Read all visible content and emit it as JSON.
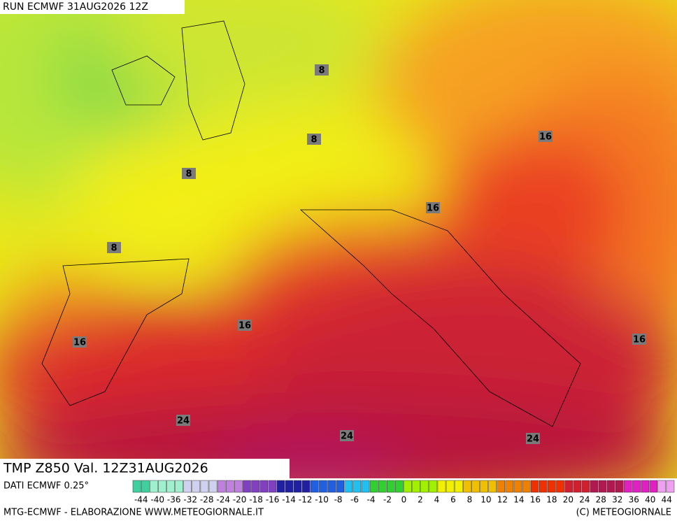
{
  "header": {
    "run": "RUN ECMWF 31AUG2026 12Z"
  },
  "map": {
    "title": "TMP Z850 Val. 12Z31AUG2026",
    "contour_labels": [
      8,
      8,
      8,
      8,
      16,
      16,
      16,
      16,
      16,
      24,
      24,
      24
    ]
  },
  "legend": {
    "source": "DATI ECMWF 0.25°",
    "ticks": [
      -44,
      -40,
      -36,
      -32,
      -28,
      -24,
      -20,
      -18,
      -16,
      -14,
      -12,
      -10,
      -8,
      -6,
      -4,
      -2,
      0,
      2,
      4,
      6,
      8,
      10,
      12,
      14,
      16,
      18,
      20,
      24,
      28,
      32,
      36,
      40,
      44
    ]
  },
  "footer": {
    "left": "MTG-ECMWF - ELABORAZIONE WWW.METEOGIORNALE.IT",
    "right": "(C) METEOGIORNALE"
  }
}
